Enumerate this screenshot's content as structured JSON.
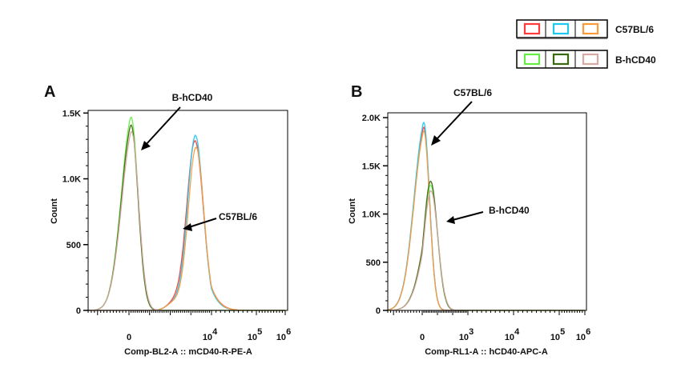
{
  "legend": {
    "entries": [
      {
        "label": "C57BL/6",
        "colors": [
          "#ff3a3a",
          "#1ec8f0",
          "#ff9a3a"
        ]
      },
      {
        "label": "B-hCD40",
        "colors": [
          "#66ee44",
          "#3a6a10",
          "#d8a8a4"
        ]
      }
    ]
  },
  "chart_data": [
    {
      "type": "line",
      "panel_label": "A",
      "xlabel": "Comp-BL2-A :: mCD40-R-PE-A",
      "ylabel": "Count",
      "y_ticks": [
        "0",
        "500",
        "1.0K",
        "1.5K"
      ],
      "y_tick_values": [
        0,
        500,
        1000,
        1500
      ],
      "ylim": [
        0,
        1520
      ],
      "x_scale": "biexponential",
      "x_ticks": [
        "0",
        "10^4",
        "10^5",
        "10^6"
      ],
      "x_tick_positions_decades": [
        0,
        4,
        5,
        6
      ],
      "annotations": [
        {
          "text": "B-hCD40",
          "points_to": "B-hCD40 peak"
        },
        {
          "text": "C57BL/6",
          "points_to": "C57BL/6 peak"
        }
      ],
      "series": [
        {
          "name": "C57BL/6 red",
          "color": "#ff3a3a",
          "group": "C57BL/6",
          "peak_x": 3.2,
          "peak_count": 1290,
          "width": 0.4
        },
        {
          "name": "C57BL/6 blue",
          "color": "#1ec8f0",
          "group": "C57BL/6",
          "peak_x": 3.22,
          "peak_count": 1330,
          "width": 0.38
        },
        {
          "name": "C57BL/6 orange",
          "color": "#ff9a3a",
          "group": "C57BL/6",
          "peak_x": 3.25,
          "peak_count": 1240,
          "width": 0.38
        },
        {
          "name": "B-hCD40 light green",
          "color": "#66ee44",
          "group": "B-hCD40",
          "peak_x": 0.1,
          "peak_count": 1470,
          "width": 0.34
        },
        {
          "name": "B-hCD40 dark green",
          "color": "#3a6a10",
          "group": "B-hCD40",
          "peak_x": 0.1,
          "peak_count": 1410,
          "width": 0.34
        },
        {
          "name": "B-hCD40 pink",
          "color": "#d8a8a4",
          "group": "B-hCD40",
          "peak_x": 0.12,
          "peak_count": 1360,
          "width": 0.35
        }
      ]
    },
    {
      "type": "line",
      "panel_label": "B",
      "xlabel": "Comp-RL1-A :: hCD40-APC-A",
      "ylabel": "Count",
      "y_ticks": [
        "0",
        "500",
        "1.0K",
        "1.5K",
        "2.0K"
      ],
      "y_tick_values": [
        0,
        500,
        1000,
        1500,
        2000
      ],
      "ylim": [
        0,
        2050
      ],
      "x_scale": "biexponential",
      "x_ticks": [
        "0",
        "10^3",
        "10^4",
        "10^5",
        "10^6"
      ],
      "x_tick_positions_decades": [
        0,
        3,
        4,
        5,
        6
      ],
      "annotations": [
        {
          "text": "C57BL/6",
          "points_to": "C57BL/6 peak"
        },
        {
          "text": "B-hCD40",
          "points_to": "B-hCD40 peak"
        }
      ],
      "series": [
        {
          "name": "C57BL/6 red",
          "color": "#ff3a3a",
          "group": "C57BL/6",
          "peak_x": 0.1,
          "peak_count": 1900,
          "width": 0.38
        },
        {
          "name": "C57BL/6 blue",
          "color": "#1ec8f0",
          "group": "C57BL/6",
          "peak_x": 0.1,
          "peak_count": 1950,
          "width": 0.38
        },
        {
          "name": "C57BL/6 orange",
          "color": "#ff9a3a",
          "group": "C57BL/6",
          "peak_x": 0.1,
          "peak_count": 1860,
          "width": 0.38
        },
        {
          "name": "B-hCD40 light green",
          "color": "#66ee44",
          "group": "B-hCD40",
          "peak_x": 0.55,
          "peak_count": 1300,
          "width": 0.45
        },
        {
          "name": "B-hCD40 dark green",
          "color": "#3a6a10",
          "group": "B-hCD40",
          "peak_x": 0.55,
          "peak_count": 1340,
          "width": 0.45
        },
        {
          "name": "B-hCD40 pink",
          "color": "#d8a8a4",
          "group": "B-hCD40",
          "peak_x": 0.57,
          "peak_count": 1240,
          "width": 0.46
        }
      ]
    }
  ]
}
